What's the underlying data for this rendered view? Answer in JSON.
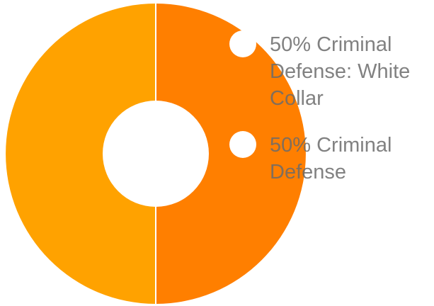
{
  "chart_data": {
    "type": "pie",
    "variant": "donut",
    "title": "",
    "slices": [
      {
        "label": "Criminal Defense: White Collar",
        "value": 50,
        "percent_label": "50%",
        "legend_lines": [
          "50%  Criminal",
          "Defense: White",
          "Collar"
        ],
        "color": "#FF7F00"
      },
      {
        "label": "Criminal Defense",
        "value": 50,
        "percent_label": "50%",
        "legend_lines": [
          "50%  Criminal",
          "Defense"
        ],
        "color": "#FFA200"
      }
    ],
    "legend_position": "top-right",
    "hole_color": "#FFFFFF",
    "separator_color": "#FFFFFF"
  }
}
